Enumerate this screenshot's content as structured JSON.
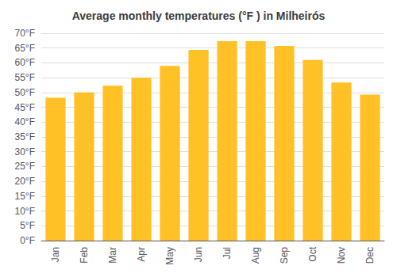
{
  "chart_data": {
    "type": "bar",
    "title": "Average monthly temperatures (°F ) in Milheirós",
    "categories": [
      "Jan",
      "Feb",
      "Mar",
      "Apr",
      "May",
      "Jun",
      "Jul",
      "Aug",
      "Sep",
      "Oct",
      "Nov",
      "Dec"
    ],
    "values": [
      48.2,
      50.0,
      52.3,
      55.0,
      59.0,
      64.4,
      67.3,
      67.3,
      65.7,
      61.0,
      53.4,
      49.3
    ],
    "color": "#FFC125",
    "ylim": [
      0,
      70
    ],
    "yticks": [
      {
        "value": 0,
        "label": "0°F"
      },
      {
        "value": 5,
        "label": "5°F"
      },
      {
        "value": 10,
        "label": "10°F"
      },
      {
        "value": 15,
        "label": "15°F"
      },
      {
        "value": 20,
        "label": "20°F"
      },
      {
        "value": 25,
        "label": "25°F"
      },
      {
        "value": 30,
        "label": "30°F"
      },
      {
        "value": 35,
        "label": "35°F"
      },
      {
        "value": 40,
        "label": "40°F"
      },
      {
        "value": 45,
        "label": "45°F"
      },
      {
        "value": 50,
        "label": "50°F"
      },
      {
        "value": 55,
        "label": "55°F"
      },
      {
        "value": 60,
        "label": "60°F"
      },
      {
        "value": 65,
        "label": "65°F"
      },
      {
        "value": 70,
        "label": "70°F"
      }
    ],
    "grid": true
  }
}
